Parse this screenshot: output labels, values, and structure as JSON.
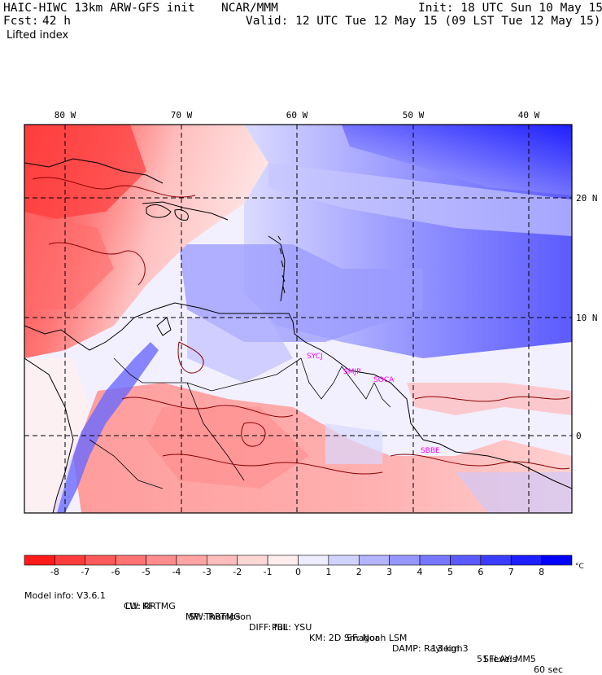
{
  "header": {
    "title": "HAIC-HIWC 13km ARW-GFS init",
    "org": "NCAR/MMM",
    "init": "Init: 18 UTC Sun 10 May 15",
    "fcst_label": "Fcst:",
    "fcst_value": "42 h",
    "valid": "Valid: 12 UTC Tue 12 May 15 (09 LST Tue 12 May 15)",
    "field": "Lifted index"
  },
  "map": {
    "lon_labels": [
      "80 W",
      "70 W",
      "60 W",
      "50 W",
      "40 W"
    ],
    "lat_labels": [
      "20 N",
      "10 N",
      "0"
    ],
    "stations": [
      "SYCJ",
      "SMJP",
      "SOCA",
      "SBBE"
    ]
  },
  "colorbar": {
    "tick_labels": [
      "-8",
      "-7",
      "-6",
      "-5",
      "-4",
      "-3",
      "-2",
      "-1",
      "0",
      "1",
      "2",
      "3",
      "4",
      "5",
      "6",
      "7",
      "8"
    ],
    "unit": "°C",
    "colors": [
      "#ff1a1a",
      "#ff3c3c",
      "#ff5a5a",
      "#ff7373",
      "#ff8c8c",
      "#ffa3a3",
      "#ffbcbc",
      "#ffd6d6",
      "#ffeded",
      "#ededff",
      "#d2d2ff",
      "#b4b4ff",
      "#9696ff",
      "#7878ff",
      "#5a5aff",
      "#3c3cff",
      "#1e1eff",
      "#0000ff"
    ]
  },
  "model_info": {
    "line1": [
      "Model info: V3.6.1",
      "CU: KF",
      "MP: Thompson",
      "PBL: YSU",
      "SF: Noah LSM",
      "13 km",
      "51 levels",
      "60 sec"
    ],
    "line2": [
      "LW: RRTMG",
      "SW: RRTMG",
      "DIFF: full",
      "KM: 2D Smagor",
      "DAMP: Rayleigh3",
      "SFLAY: MM5"
    ]
  }
}
